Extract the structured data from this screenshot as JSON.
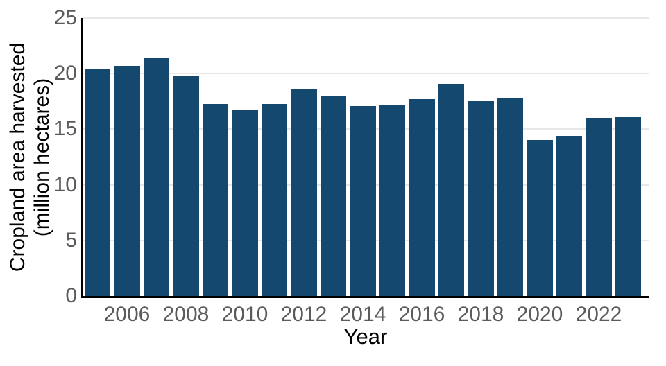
{
  "chart_data": {
    "type": "bar",
    "title": "",
    "xlabel": "Year",
    "ylabel": "Cropland area harvested (million hectares)",
    "ylabel_line1": "Cropland area harvested",
    "ylabel_line2": "(million hectares)",
    "categories": [
      2005,
      2006,
      2007,
      2008,
      2009,
      2010,
      2011,
      2012,
      2013,
      2014,
      2015,
      2016,
      2017,
      2018,
      2019,
      2020,
      2021,
      2022,
      2023
    ],
    "values": [
      20.4,
      20.7,
      21.4,
      19.8,
      17.3,
      16.8,
      17.3,
      18.6,
      18.0,
      17.1,
      17.2,
      17.7,
      19.1,
      17.5,
      17.8,
      14.0,
      14.4,
      16.0,
      16.1
    ],
    "x_tick_labels": [
      "2006",
      "2008",
      "2010",
      "2012",
      "2014",
      "2016",
      "2018",
      "2020",
      "2022"
    ],
    "y_ticks": [
      0,
      5,
      10,
      15,
      20,
      25
    ],
    "ylim": [
      0,
      25
    ],
    "grid": "horizontal",
    "legend": "none",
    "bar_color": "#14486E",
    "gridline_color": "#e7e7e7",
    "tick_label_color": "#5b5b5b",
    "axis_label_color": "#000000",
    "background_color": "#ffffff"
  }
}
